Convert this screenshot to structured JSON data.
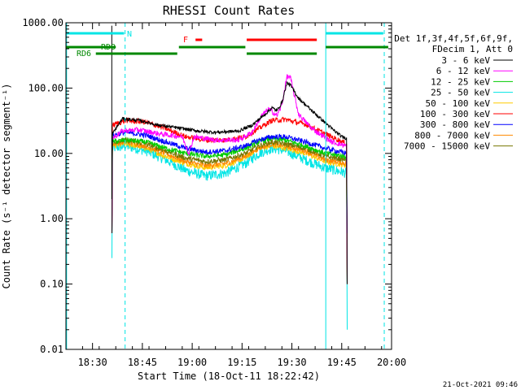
{
  "chart_data": {
    "type": "line",
    "title": "RHESSI Count Rates",
    "xlabel": "Start Time (18-Oct-11 18:22:42)",
    "ylabel": "Count Rate (s⁻¹ detector segment⁻¹)",
    "yscale": "log",
    "ylim": [
      0.01,
      1000
    ],
    "xlim_minutes_after_1822": [
      0,
      98
    ],
    "ytick_labels": [
      "0.01",
      "0.10",
      "1.00",
      "10.00",
      "100.00",
      "1000.00"
    ],
    "ytick_values": [
      0.01,
      0.1,
      1,
      10,
      100,
      1000
    ],
    "xtick_labels": [
      "18:30",
      "18:45",
      "19:00",
      "19:15",
      "19:30",
      "19:45",
      "20:00"
    ],
    "xtick_values_min": [
      8,
      23,
      38,
      53,
      68,
      83,
      98
    ],
    "legend_header": [
      "Det 1f,3f,4f,5f,6f,9f,",
      "FDecim 1, Att 0"
    ],
    "series": [
      {
        "name": "3 - 6 keV",
        "color": "#000000",
        "points": [
          [
            14,
            20
          ],
          [
            17,
            34
          ],
          [
            22,
            32
          ],
          [
            28,
            27
          ],
          [
            35,
            24
          ],
          [
            40,
            22
          ],
          [
            45,
            21
          ],
          [
            52,
            22
          ],
          [
            56,
            27
          ],
          [
            60,
            40
          ],
          [
            62,
            50
          ],
          [
            63.5,
            45
          ],
          [
            65,
            60
          ],
          [
            66.5,
            120
          ],
          [
            67.5,
            112
          ],
          [
            70,
            70
          ],
          [
            74,
            45
          ],
          [
            80,
            24
          ],
          [
            83,
            18
          ],
          [
            84.5,
            17
          ]
        ]
      },
      {
        "name": "6 - 12 keV",
        "color": "#ff00ff",
        "points": [
          [
            14,
            17
          ],
          [
            17,
            22
          ],
          [
            22,
            23
          ],
          [
            28,
            20
          ],
          [
            35,
            18
          ],
          [
            37,
            10
          ],
          [
            38.5,
            18
          ],
          [
            45,
            16
          ],
          [
            52,
            16
          ],
          [
            56,
            21
          ],
          [
            59,
            38
          ],
          [
            61,
            48
          ],
          [
            63.5,
            38
          ],
          [
            65,
            55
          ],
          [
            66.5,
            150
          ],
          [
            67.5,
            148
          ],
          [
            70,
            40
          ],
          [
            74,
            24
          ],
          [
            80,
            15
          ],
          [
            84.5,
            13
          ]
        ]
      },
      {
        "name": "12 - 25 keV",
        "color": "#00cc00",
        "points": [
          [
            14,
            15
          ],
          [
            18,
            16
          ],
          [
            24,
            15
          ],
          [
            30,
            12
          ],
          [
            36,
            10
          ],
          [
            42,
            9
          ],
          [
            48,
            9.5
          ],
          [
            54,
            12
          ],
          [
            58,
            15
          ],
          [
            62,
            17
          ],
          [
            66,
            16
          ],
          [
            72,
            13
          ],
          [
            78,
            10
          ],
          [
            84.5,
            9
          ]
        ]
      },
      {
        "name": "25 - 50 keV",
        "color": "#00e5e5",
        "points": [
          [
            14,
            12
          ],
          [
            18,
            13
          ],
          [
            24,
            11
          ],
          [
            30,
            8
          ],
          [
            36,
            5.5
          ],
          [
            42,
            4.5
          ],
          [
            48,
            5
          ],
          [
            54,
            7
          ],
          [
            58,
            10
          ],
          [
            62,
            12
          ],
          [
            66,
            11
          ],
          [
            72,
            8
          ],
          [
            78,
            6
          ],
          [
            84.5,
            5
          ]
        ]
      },
      {
        "name": "50 - 100 keV",
        "color": "#ffcc00",
        "points": [
          [
            14,
            13
          ],
          [
            18,
            14
          ],
          [
            24,
            12
          ],
          [
            30,
            9
          ],
          [
            36,
            7
          ],
          [
            42,
            6
          ],
          [
            48,
            6.5
          ],
          [
            54,
            8.5
          ],
          [
            58,
            12
          ],
          [
            62,
            13
          ],
          [
            66,
            12
          ],
          [
            72,
            10
          ],
          [
            78,
            7.5
          ],
          [
            84.5,
            6.5
          ]
        ]
      },
      {
        "name": "100 - 300 keV",
        "color": "#ff0000",
        "points": [
          [
            14,
            27
          ],
          [
            18,
            32
          ],
          [
            24,
            30
          ],
          [
            30,
            24
          ],
          [
            36,
            18
          ],
          [
            42,
            16
          ],
          [
            48,
            16
          ],
          [
            54,
            18
          ],
          [
            58,
            24
          ],
          [
            62,
            32
          ],
          [
            66,
            33
          ],
          [
            72,
            28
          ],
          [
            78,
            20
          ],
          [
            84.5,
            14
          ]
        ]
      },
      {
        "name": "300 - 800 keV",
        "color": "#0000ff",
        "points": [
          [
            14,
            19
          ],
          [
            18,
            21
          ],
          [
            24,
            19
          ],
          [
            30,
            15
          ],
          [
            36,
            12
          ],
          [
            42,
            10.5
          ],
          [
            48,
            11
          ],
          [
            54,
            13
          ],
          [
            58,
            16
          ],
          [
            62,
            18
          ],
          [
            66,
            18
          ],
          [
            72,
            15
          ],
          [
            78,
            12
          ],
          [
            84.5,
            10
          ]
        ]
      },
      {
        "name": "800 - 7000 keV",
        "color": "#ff8800",
        "points": [
          [
            14,
            14
          ],
          [
            18,
            15
          ],
          [
            24,
            13
          ],
          [
            30,
            10
          ],
          [
            36,
            7.5
          ],
          [
            42,
            6.5
          ],
          [
            48,
            7
          ],
          [
            54,
            9
          ],
          [
            58,
            12
          ],
          [
            62,
            14
          ],
          [
            66,
            13
          ],
          [
            72,
            11
          ],
          [
            78,
            8
          ],
          [
            84.5,
            7
          ]
        ]
      },
      {
        "name": "7000 - 15000 keV",
        "color": "#777700",
        "points": [
          [
            14,
            15
          ],
          [
            18,
            16
          ],
          [
            24,
            14
          ],
          [
            30,
            11
          ],
          [
            36,
            8.5
          ],
          [
            42,
            7.5
          ],
          [
            48,
            8
          ],
          [
            54,
            10
          ],
          [
            58,
            13
          ],
          [
            62,
            15
          ],
          [
            66,
            14
          ],
          [
            72,
            12
          ],
          [
            78,
            9
          ],
          [
            84.5,
            8
          ]
        ]
      }
    ],
    "vertical_lines": [
      {
        "x": 0.2,
        "color": "#00e5e5",
        "style": "solid"
      },
      {
        "x": 17.8,
        "color": "#00e5e5",
        "style": "dashed"
      },
      {
        "x": 78.2,
        "color": "#00e5e5",
        "style": "solid"
      },
      {
        "x": 95.8,
        "color": "#00e5e5",
        "style": "dashed"
      }
    ],
    "flag_bars": [
      {
        "label": "N",
        "color": "#00e5e5",
        "label_color": "#00e5e5",
        "row": 0,
        "segments": [
          [
            0,
            17.5
          ],
          [
            78.2,
            95.5
          ]
        ]
      },
      {
        "label": "F",
        "color": "#ff0000",
        "label_color": "#ff0000",
        "row": 1,
        "segments": [
          [
            39,
            41
          ],
          [
            54.4,
            75.5
          ]
        ]
      },
      {
        "label": "RDO",
        "color": "#008800",
        "label_color": "#008800",
        "row": 2,
        "segments": [
          [
            0,
            15
          ],
          [
            34,
            54
          ],
          [
            78.2,
            97
          ]
        ]
      },
      {
        "label": "RD6",
        "color": "#008800",
        "label_color": "#008800",
        "row": 3,
        "segments": [
          [
            9,
            33.5
          ],
          [
            54.4,
            75.5
          ]
        ]
      }
    ],
    "timestamp": "21-Oct-2021 09:46"
  }
}
